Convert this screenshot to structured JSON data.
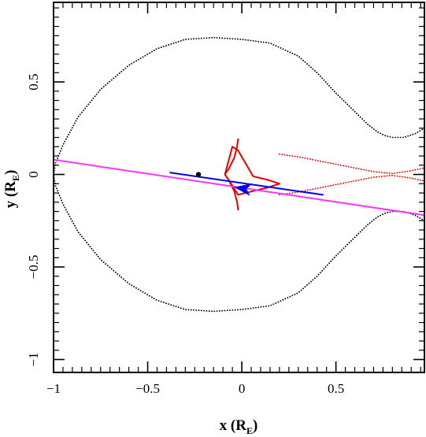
{
  "chart_data": {
    "type": "line",
    "title": "",
    "xlabel": {
      "main": "x (R",
      "sub": "E",
      "close": ")"
    },
    "ylabel": {
      "main": "y (R",
      "sub": "E",
      "close": ")"
    },
    "xlim": [
      -1.0,
      0.97
    ],
    "ylim": [
      -1.07,
      0.93
    ],
    "xticks": [
      -1,
      -0.5,
      0,
      0.5
    ],
    "xtick_labels": [
      "−1",
      "−0.5",
      "0",
      "0.5"
    ],
    "yticks": [
      -1,
      -0.5,
      0,
      0.5
    ],
    "ytick_labels": [
      "−1",
      "−0.5",
      "0",
      "0.5"
    ],
    "grid": false,
    "colors": {
      "critical_curve": "#000000",
      "caustic": "#e60000",
      "source_trajectory": "#ff33ff",
      "trajectory_segment": "#0000ee"
    },
    "series": [
      {
        "style": "dotted",
        "color": "#000000",
        "x": [
          0.97,
          0.92,
          0.86,
          0.8,
          0.76,
          0.72,
          0.67,
          0.6,
          0.5,
          0.4,
          0.3,
          0.15,
          0.0,
          -0.15,
          -0.3,
          -0.45,
          -0.6,
          -0.75,
          -0.87,
          -0.95,
          -0.99,
          -1.0,
          -0.99,
          -0.95,
          -0.87,
          -0.75,
          -0.6,
          -0.45,
          -0.3,
          -0.15,
          0.0,
          0.15,
          0.3,
          0.4,
          0.5,
          0.6,
          0.67,
          0.72,
          0.76,
          0.8,
          0.86,
          0.92,
          0.97
        ],
        "y": [
          0.25,
          0.22,
          0.2,
          0.2,
          0.21,
          0.23,
          0.27,
          0.34,
          0.44,
          0.55,
          0.64,
          0.71,
          0.73,
          0.74,
          0.73,
          0.68,
          0.59,
          0.46,
          0.31,
          0.16,
          0.06,
          0.0,
          -0.06,
          -0.16,
          -0.31,
          -0.46,
          -0.59,
          -0.68,
          -0.73,
          -0.74,
          -0.73,
          -0.71,
          -0.64,
          -0.55,
          -0.44,
          -0.34,
          -0.27,
          -0.23,
          -0.21,
          -0.2,
          -0.2,
          -0.22,
          -0.25
        ]
      },
      {
        "style": "solid",
        "color": "#e60000",
        "x": [
          -0.02,
          -0.025,
          -0.04,
          -0.07,
          -0.09,
          -0.05,
          -0.02,
          0.06,
          0.14,
          0.2,
          0.14,
          0.06,
          -0.02,
          -0.05,
          -0.09,
          -0.07,
          -0.04,
          -0.025,
          -0.02
        ],
        "y": [
          0.19,
          0.15,
          0.09,
          0.03,
          0.0,
          -0.06,
          -0.11,
          -0.09,
          -0.07,
          -0.05,
          -0.03,
          -0.01,
          0.13,
          0.15,
          0.0,
          -0.03,
          -0.09,
          -0.15,
          -0.19
        ]
      },
      {
        "style": "dotted",
        "color": "#e60000",
        "x": [
          0.2,
          0.3,
          0.4,
          0.5,
          0.6,
          0.7,
          0.8,
          0.9,
          0.97
        ],
        "y": [
          0.11,
          0.095,
          0.075,
          0.055,
          0.035,
          0.015,
          0.005,
          0.02,
          0.035
        ]
      },
      {
        "style": "dotted",
        "color": "#e60000",
        "x": [
          0.2,
          0.3,
          0.4,
          0.5,
          0.6,
          0.7,
          0.8,
          0.9,
          0.97
        ],
        "y": [
          -0.11,
          -0.095,
          -0.075,
          -0.055,
          -0.035,
          -0.015,
          -0.005,
          -0.02,
          -0.035
        ]
      },
      {
        "style": "solid",
        "color": "#ff33ff",
        "x": [
          -1.0,
          0.97
        ],
        "y": [
          0.08,
          -0.22
        ]
      },
      {
        "style": "solid",
        "color": "#0000ee",
        "x": [
          -0.38,
          0.43
        ],
        "y": [
          0.01,
          -0.11
        ]
      }
    ],
    "points": [
      {
        "x": -0.23,
        "y": 0.0,
        "color": "#000000"
      }
    ],
    "arrows": [
      {
        "x": 0.0,
        "y": -0.075,
        "dx": -1,
        "dy": 0.15,
        "color": "#0000ee"
      }
    ]
  }
}
